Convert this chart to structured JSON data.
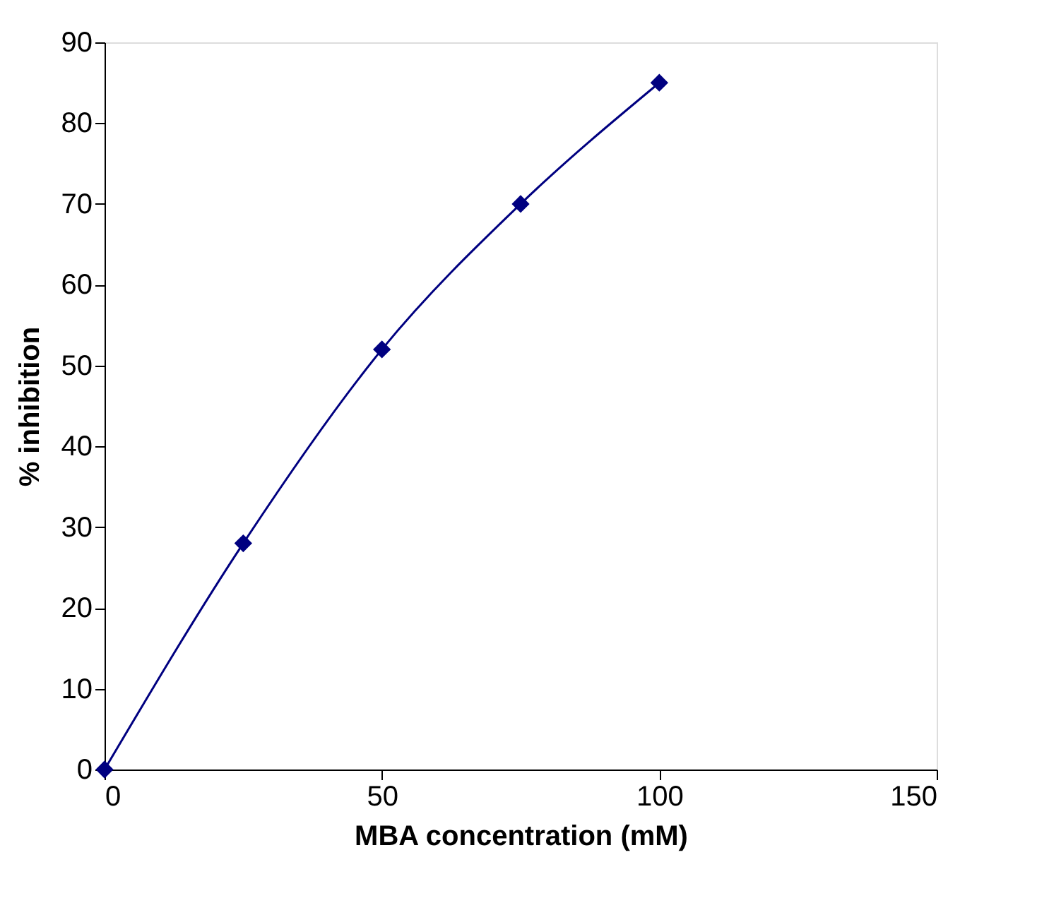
{
  "chart_data": {
    "type": "line",
    "xlabel": "MBA concentration (mM)",
    "ylabel": "% inhibition",
    "x": [
      0,
      25,
      50,
      75,
      100
    ],
    "series": [
      {
        "color": "#000080",
        "values": [
          0,
          28,
          52,
          70,
          85
        ]
      }
    ],
    "xlim": [
      0,
      150
    ],
    "xticks": [
      0,
      50,
      100,
      150
    ],
    "ylim": [
      0,
      90
    ],
    "yticks": [
      0,
      10,
      20,
      30,
      40,
      50,
      60,
      70,
      80,
      90
    ],
    "marker": "diamond",
    "line_style": "solid",
    "grid": false
  }
}
